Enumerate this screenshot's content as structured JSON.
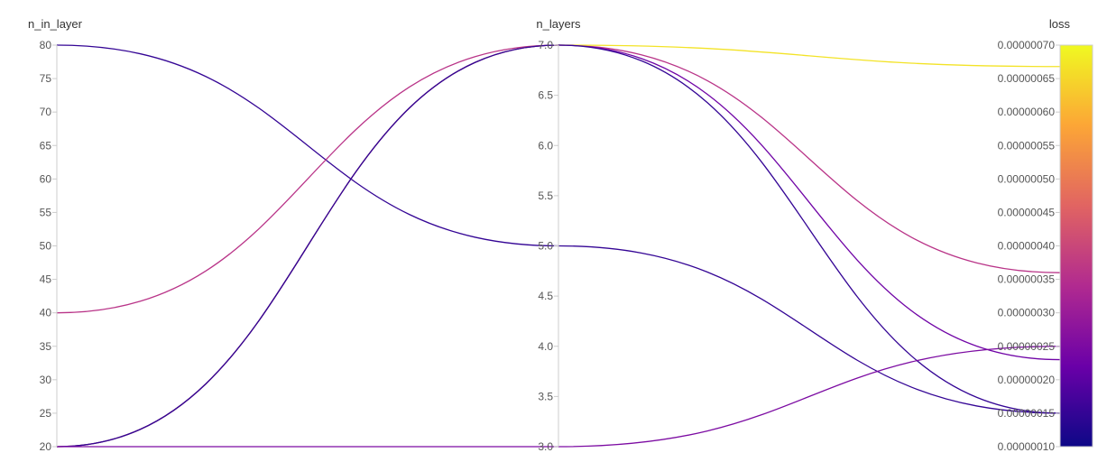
{
  "chart_data": {
    "type": "parallel_coordinates",
    "axes": [
      {
        "name": "n_in_layer",
        "range": [
          20,
          80
        ],
        "ticks": [
          "80",
          "75",
          "70",
          "65",
          "60",
          "55",
          "50",
          "45",
          "40",
          "35",
          "30",
          "25",
          "20"
        ]
      },
      {
        "name": "n_layers",
        "range": [
          3.0,
          7.0
        ],
        "ticks": [
          "7.0",
          "6.5",
          "6.0",
          "5.5",
          "5.0",
          "4.5",
          "4.0",
          "3.5",
          "3.0"
        ]
      },
      {
        "name": "loss",
        "range": [
          1e-07,
          7e-07
        ],
        "ticks": [
          "0.00000070",
          "0.00000065",
          "0.00000060",
          "0.00000055",
          "0.00000050",
          "0.00000045",
          "0.00000040",
          "0.00000035",
          "0.00000030",
          "0.00000025",
          "0.00000020",
          "0.00000015",
          "0.00000010"
        ]
      }
    ],
    "runs": [
      {
        "n_in_layer": 80,
        "n_layers": 5.0,
        "loss": 1.5e-07
      },
      {
        "n_in_layer": 40,
        "n_layers": 7.0,
        "loss": 3.6e-07
      },
      {
        "n_in_layer": 20,
        "n_layers": 7.0,
        "loss": 6.68e-07
      },
      {
        "n_in_layer": 20,
        "n_layers": 7.0,
        "loss": 2.3e-07
      },
      {
        "n_in_layer": 20,
        "n_layers": 7.0,
        "loss": 1.5e-07
      },
      {
        "n_in_layer": 20,
        "n_layers": 3.0,
        "loss": 2.5e-07
      }
    ],
    "colorscale": {
      "metric": "loss",
      "stops": [
        "#0d0887",
        "#6a00a8",
        "#b12a90",
        "#e16462",
        "#fca636",
        "#f0f921"
      ]
    }
  }
}
